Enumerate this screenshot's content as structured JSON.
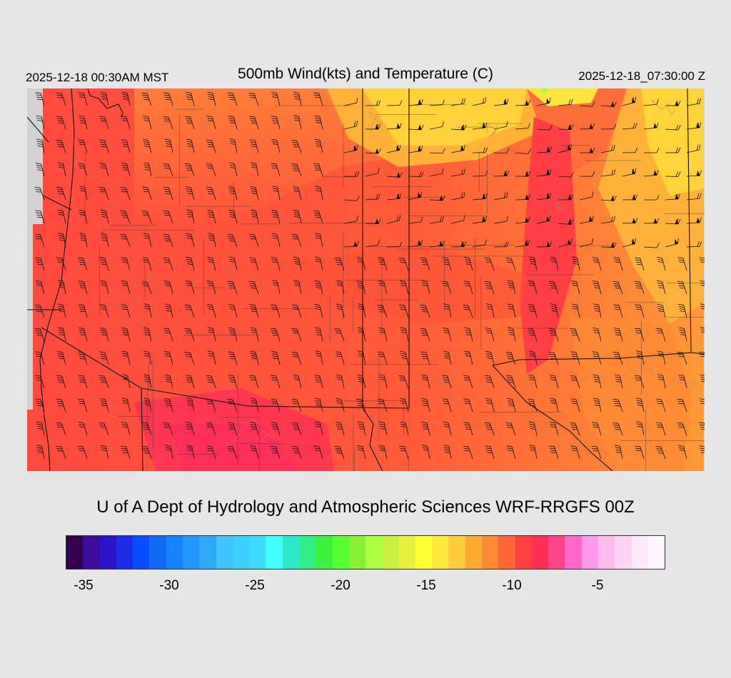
{
  "header": {
    "local_time": "2025-12-18 00:30AM MST",
    "title": "500mb Wind(kts) and Temperature (C)",
    "valid_time": "2025-12-18_07:30:00 Z"
  },
  "credit": "U of A Dept of Hydrology and Atmospheric Sciences WRF-RRGFS 00Z",
  "colorbar": {
    "colors": [
      "#33004d",
      "#3d0a99",
      "#2b14c8",
      "#1a2ee8",
      "#0a4dff",
      "#0f6af5",
      "#1784ff",
      "#1f99ff",
      "#2eaaf5",
      "#40c2ff",
      "#3dcfff",
      "#3ddbff",
      "#40ffff",
      "#2ee8cc",
      "#33ee88",
      "#40f040",
      "#55ff33",
      "#88f033",
      "#aaff44",
      "#ccf040",
      "#e8f040",
      "#ffff33",
      "#ffea40",
      "#ffcc3d",
      "#ffaa33",
      "#ff8833",
      "#ff6633",
      "#ff4040",
      "#ff2e55",
      "#ff4488",
      "#ff66cc",
      "#ff99ee",
      "#ffbbee",
      "#ffd4f5",
      "#ffe8fa",
      "#fff4ff"
    ],
    "labels": [
      "-35",
      "-30",
      "-25",
      "-20",
      "-15",
      "-10",
      "-5"
    ]
  }
}
